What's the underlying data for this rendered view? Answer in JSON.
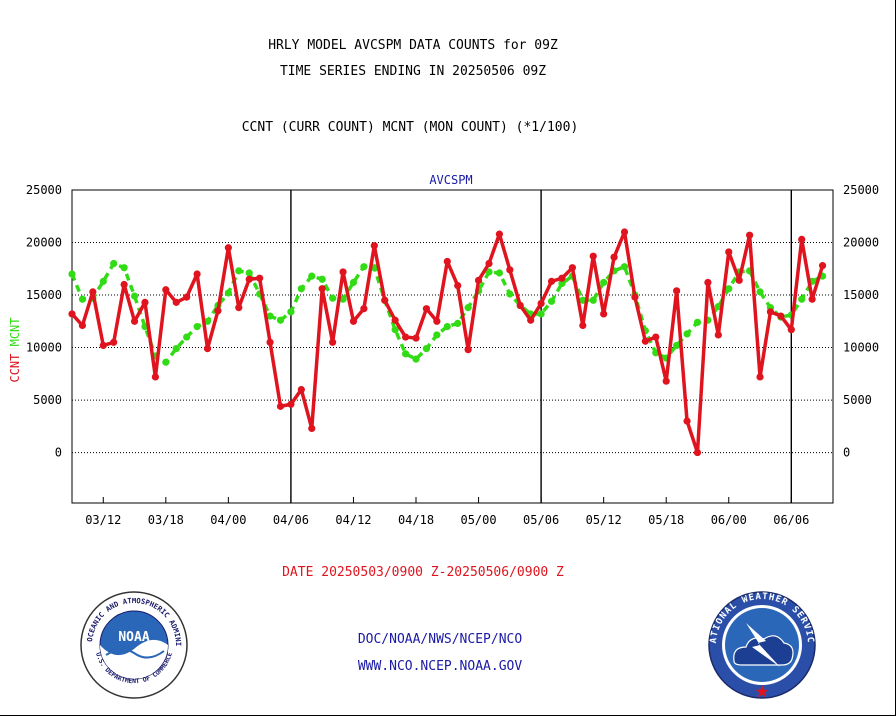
{
  "header": {
    "line1": "HRLY MODEL AVCSPM DATA COUNTS for 09Z",
    "line2": "TIME SERIES ENDING IN 20250506 09Z",
    "line3": "CCNT (CURR COUNT) MCNT (MON COUNT) (*1/100)"
  },
  "footer": {
    "date_range": "DATE 20250503/0900 Z-20250506/0900 Z",
    "org": "DOC/NOAA/NWS/NCEP/NCO",
    "url": "WWW.NCO.NCEP.NOAA.GOV"
  },
  "logos": {
    "noaa_center": "NOAA",
    "noaa_ring": "NATIONAL OCEANIC AND ATMOSPHERIC ADMINISTRATION",
    "noaa_ring_bottom": "U.S. DEPARTMENT OF COMMERCE",
    "nws_ring": "NATIONAL WEATHER SERVICE"
  },
  "chart_data": {
    "type": "line",
    "title": "AVCSPM",
    "ylabel_left": "CCNT",
    "ylabel_right": "MCNT",
    "ylim": [
      -4800,
      25000
    ],
    "yticks": [
      0,
      5000,
      10000,
      15000,
      20000,
      25000
    ],
    "x_count": 73,
    "xlim": [
      0,
      73
    ],
    "xtick_labels": [
      {
        "i": 3,
        "label": "03/12"
      },
      {
        "i": 9,
        "label": "03/18"
      },
      {
        "i": 15,
        "label": "04/00"
      },
      {
        "i": 21,
        "label": "04/06"
      },
      {
        "i": 27,
        "label": "04/12"
      },
      {
        "i": 33,
        "label": "04/18"
      },
      {
        "i": 39,
        "label": "05/00"
      },
      {
        "i": 45,
        "label": "05/06"
      },
      {
        "i": 51,
        "label": "05/12"
      },
      {
        "i": 57,
        "label": "05/18"
      },
      {
        "i": 63,
        "label": "06/00"
      },
      {
        "i": 69,
        "label": "06/06"
      }
    ],
    "day_dividers": [
      21,
      45,
      69
    ],
    "grid": true,
    "colors": {
      "ccnt": "#e0141e",
      "mcnt": "#32dc14",
      "title": "#1a1aa6",
      "axis": "#000000"
    },
    "series": [
      {
        "name": "CCNT",
        "values": [
          13200,
          12100,
          15300,
          10200,
          10500,
          16000,
          12500,
          14300,
          7200,
          15500,
          14300,
          14800,
          17000,
          9900,
          13500,
          19500,
          13800,
          16500,
          16600,
          10500,
          4400,
          4600,
          6000,
          2300,
          15600,
          10500,
          17200,
          12500,
          13700,
          19700,
          14500,
          12600,
          11000,
          10900,
          13700,
          12500,
          18200,
          15900,
          9800,
          16400,
          18000,
          20800,
          17400,
          14000,
          12600,
          14200,
          16300,
          16600,
          17600,
          12100,
          18700,
          13200,
          18600,
          21000,
          14800,
          10600,
          11000,
          6800,
          15400,
          3000,
          0,
          16200,
          11200,
          19100,
          16400,
          20700,
          7200,
          13400,
          13000,
          11700,
          20300,
          14600,
          17800
        ]
      },
      {
        "name": "MCNT",
        "values": [
          17000,
          14600,
          14700,
          16300,
          18000,
          17600,
          14900,
          12000,
          9200,
          8600,
          9900,
          11000,
          12000,
          12500,
          14000,
          15200,
          17300,
          17100,
          15100,
          13000,
          12600,
          13400,
          15600,
          16800,
          16500,
          14700,
          14600,
          16200,
          17700,
          17600,
          14500,
          11700,
          9400,
          8900,
          9900,
          11200,
          12000,
          12300,
          13800,
          15400,
          17200,
          17100,
          15100,
          14000,
          13200,
          13200,
          14400,
          16100,
          16800,
          14500,
          14500,
          16200,
          17300,
          17700,
          15000,
          11600,
          9500,
          9000,
          10200,
          11300,
          12400,
          12600,
          13900,
          15600,
          17200,
          17300,
          15300,
          13800,
          12900,
          13100,
          14600,
          16300,
          16800
        ]
      }
    ]
  }
}
